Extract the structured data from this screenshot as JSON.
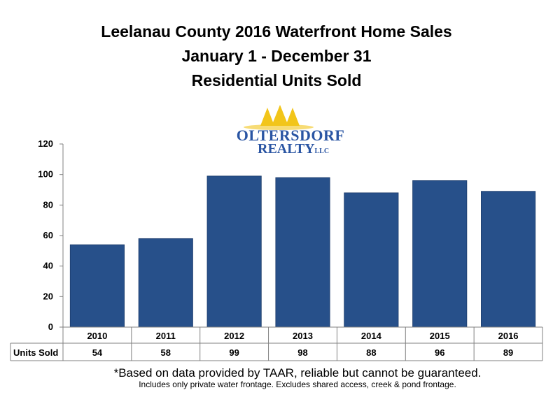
{
  "title_lines": [
    "Leelanau County 2016 Waterfront Home Sales",
    "January 1 - December 31",
    "Residential Units Sold"
  ],
  "logo": {
    "line1": "OLTERSDORF",
    "line2": "REALTY",
    "suffix": "LLC",
    "tree_color": "#f2c51a",
    "text_color": "#2a55a3"
  },
  "chart_data": {
    "type": "bar",
    "categories": [
      "2010",
      "2011",
      "2012",
      "2013",
      "2014",
      "2015",
      "2016"
    ],
    "series": [
      {
        "name": "Units Sold",
        "values": [
          54,
          58,
          99,
          98,
          88,
          96,
          89
        ]
      }
    ],
    "ylim": [
      0,
      120
    ],
    "yticks": [
      0,
      20,
      40,
      60,
      80,
      100,
      120
    ],
    "bar_color": "#27508a",
    "data_table_row_label": "Units Sold",
    "grid": false
  },
  "footnotes": [
    "*Based on data provided by TAAR, reliable but cannot be guaranteed.",
    "Includes only private water frontage. Excludes shared access, creek & pond frontage."
  ]
}
